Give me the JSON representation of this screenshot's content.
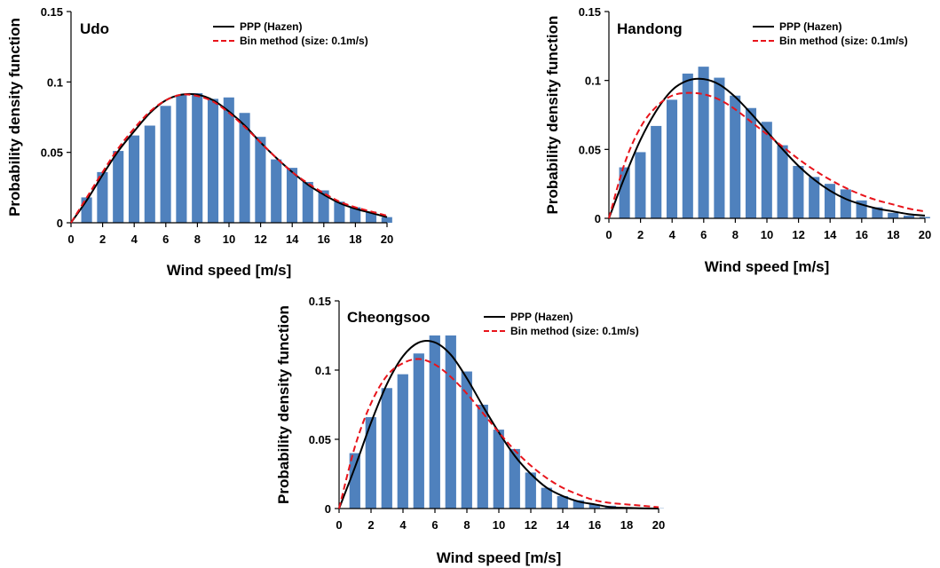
{
  "chart_data": [
    {
      "type": "bar",
      "title": "Udo",
      "xlabel": "Wind speed [m/s]",
      "ylabel": "Probability density function",
      "xlim": [
        0,
        20
      ],
      "ylim": [
        0,
        0.15
      ],
      "xticks": [
        "0",
        "2",
        "4",
        "6",
        "8",
        "10",
        "12",
        "14",
        "16",
        "18",
        "20"
      ],
      "yticks": [
        "0",
        "0.05",
        "0.1",
        "0.15"
      ],
      "legend_position": "top-right",
      "colors": {
        "bars": "#4f81bd",
        "ppp": "#000000",
        "bin": "#e8141b"
      },
      "bars": {
        "x": [
          1,
          2,
          3,
          4,
          5,
          6,
          7,
          8,
          9,
          10,
          11,
          12,
          13,
          14,
          15,
          16,
          17,
          18,
          19,
          20
        ],
        "values": [
          0.018,
          0.036,
          0.051,
          0.062,
          0.069,
          0.083,
          0.091,
          0.092,
          0.088,
          0.089,
          0.078,
          0.061,
          0.045,
          0.039,
          0.029,
          0.023,
          0.015,
          0.011,
          0.008,
          0.004
        ]
      },
      "series": [
        {
          "name": "PPP (Hazen)",
          "style": "solid",
          "x": [
            0,
            1,
            2,
            3,
            4,
            5,
            6,
            7,
            8,
            9,
            10,
            11,
            12,
            13,
            14,
            15,
            16,
            17,
            18,
            19,
            20
          ],
          "values": [
            0,
            0.016,
            0.034,
            0.051,
            0.065,
            0.078,
            0.087,
            0.091,
            0.091,
            0.087,
            0.079,
            0.069,
            0.057,
            0.046,
            0.036,
            0.027,
            0.02,
            0.014,
            0.01,
            0.007,
            0.004
          ]
        },
        {
          "name": "Bin method (size: 0.1m/s)",
          "style": "dashed",
          "x": [
            0,
            1,
            2,
            3,
            4,
            5,
            6,
            7,
            8,
            9,
            10,
            11,
            12,
            13,
            14,
            15,
            16,
            17,
            18,
            19,
            20
          ],
          "values": [
            0,
            0.018,
            0.036,
            0.053,
            0.067,
            0.079,
            0.087,
            0.091,
            0.09,
            0.086,
            0.078,
            0.068,
            0.057,
            0.046,
            0.036,
            0.028,
            0.021,
            0.015,
            0.011,
            0.008,
            0.005
          ]
        }
      ]
    },
    {
      "type": "bar",
      "title": "Handong",
      "xlabel": "Wind speed [m/s]",
      "ylabel": "Probability density function",
      "xlim": [
        0,
        20
      ],
      "ylim": [
        0,
        0.15
      ],
      "xticks": [
        "0",
        "2",
        "4",
        "6",
        "8",
        "10",
        "12",
        "14",
        "16",
        "18",
        "20"
      ],
      "yticks": [
        "0",
        "0.05",
        "0.1",
        "0.15"
      ],
      "legend_position": "top-right",
      "colors": {
        "bars": "#4f81bd",
        "ppp": "#000000",
        "bin": "#e8141b"
      },
      "bars": {
        "x": [
          1,
          2,
          3,
          4,
          5,
          6,
          7,
          8,
          9,
          10,
          11,
          12,
          13,
          14,
          15,
          16,
          17,
          18,
          19,
          20
        ],
        "values": [
          0.037,
          0.048,
          0.067,
          0.086,
          0.105,
          0.11,
          0.102,
          0.089,
          0.08,
          0.07,
          0.053,
          0.038,
          0.03,
          0.025,
          0.021,
          0.013,
          0.008,
          0.004,
          0.002,
          0.001
        ]
      },
      "series": [
        {
          "name": "PPP (Hazen)",
          "style": "solid",
          "x": [
            0,
            1,
            2,
            3,
            4,
            5,
            6,
            7,
            8,
            9,
            10,
            11,
            12,
            13,
            14,
            15,
            16,
            17,
            18,
            19,
            20
          ],
          "values": [
            0,
            0.03,
            0.057,
            0.078,
            0.093,
            0.1,
            0.101,
            0.097,
            0.088,
            0.076,
            0.063,
            0.05,
            0.038,
            0.028,
            0.02,
            0.014,
            0.01,
            0.007,
            0.005,
            0.003,
            0.002
          ]
        },
        {
          "name": "Bin method (size: 0.1m/s)",
          "style": "dashed",
          "x": [
            0,
            1,
            2,
            3,
            4,
            5,
            6,
            7,
            8,
            9,
            10,
            11,
            12,
            13,
            14,
            15,
            16,
            17,
            18,
            19,
            20
          ],
          "values": [
            0,
            0.04,
            0.066,
            0.081,
            0.089,
            0.091,
            0.09,
            0.086,
            0.079,
            0.07,
            0.061,
            0.052,
            0.043,
            0.035,
            0.028,
            0.022,
            0.017,
            0.013,
            0.01,
            0.007,
            0.005
          ]
        }
      ]
    },
    {
      "type": "bar",
      "title": "Cheongsoo",
      "xlabel": "Wind speed [m/s]",
      "ylabel": "Probability density function",
      "xlim": [
        0,
        20
      ],
      "ylim": [
        0,
        0.15
      ],
      "xticks": [
        "0",
        "2",
        "4",
        "6",
        "8",
        "10",
        "12",
        "14",
        "16",
        "18",
        "20"
      ],
      "yticks": [
        "0",
        "0.05",
        "0.1",
        "0.15"
      ],
      "legend_position": "top-right",
      "colors": {
        "bars": "#4f81bd",
        "ppp": "#000000",
        "bin": "#e8141b"
      },
      "bars": {
        "x": [
          1,
          2,
          3,
          4,
          5,
          6,
          7,
          8,
          9,
          10,
          11,
          12,
          13,
          14,
          15,
          16,
          17,
          18,
          19,
          20
        ],
        "values": [
          0.04,
          0.066,
          0.087,
          0.097,
          0.112,
          0.125,
          0.125,
          0.099,
          0.075,
          0.057,
          0.043,
          0.026,
          0.015,
          0.009,
          0.006,
          0.003,
          0.002,
          0.001,
          0.0005,
          0.0002
        ]
      },
      "series": [
        {
          "name": "PPP (Hazen)",
          "style": "solid",
          "x": [
            0,
            1,
            2,
            3,
            4,
            5,
            6,
            7,
            8,
            9,
            10,
            11,
            12,
            13,
            14,
            15,
            16,
            17,
            18,
            19,
            20
          ],
          "values": [
            0,
            0.03,
            0.062,
            0.09,
            0.11,
            0.12,
            0.12,
            0.111,
            0.094,
            0.074,
            0.055,
            0.038,
            0.025,
            0.015,
            0.009,
            0.005,
            0.003,
            0.001,
            0.0005,
            0.0002,
            0
          ]
        },
        {
          "name": "Bin method (size: 0.1m/s)",
          "style": "dashed",
          "x": [
            0,
            1,
            2,
            3,
            4,
            5,
            6,
            7,
            8,
            9,
            10,
            11,
            12,
            13,
            14,
            15,
            16,
            17,
            18,
            19,
            20
          ],
          "values": [
            0,
            0.045,
            0.076,
            0.096,
            0.105,
            0.108,
            0.104,
            0.095,
            0.083,
            0.069,
            0.055,
            0.042,
            0.031,
            0.022,
            0.015,
            0.01,
            0.006,
            0.004,
            0.003,
            0.002,
            0.001
          ]
        }
      ]
    }
  ]
}
